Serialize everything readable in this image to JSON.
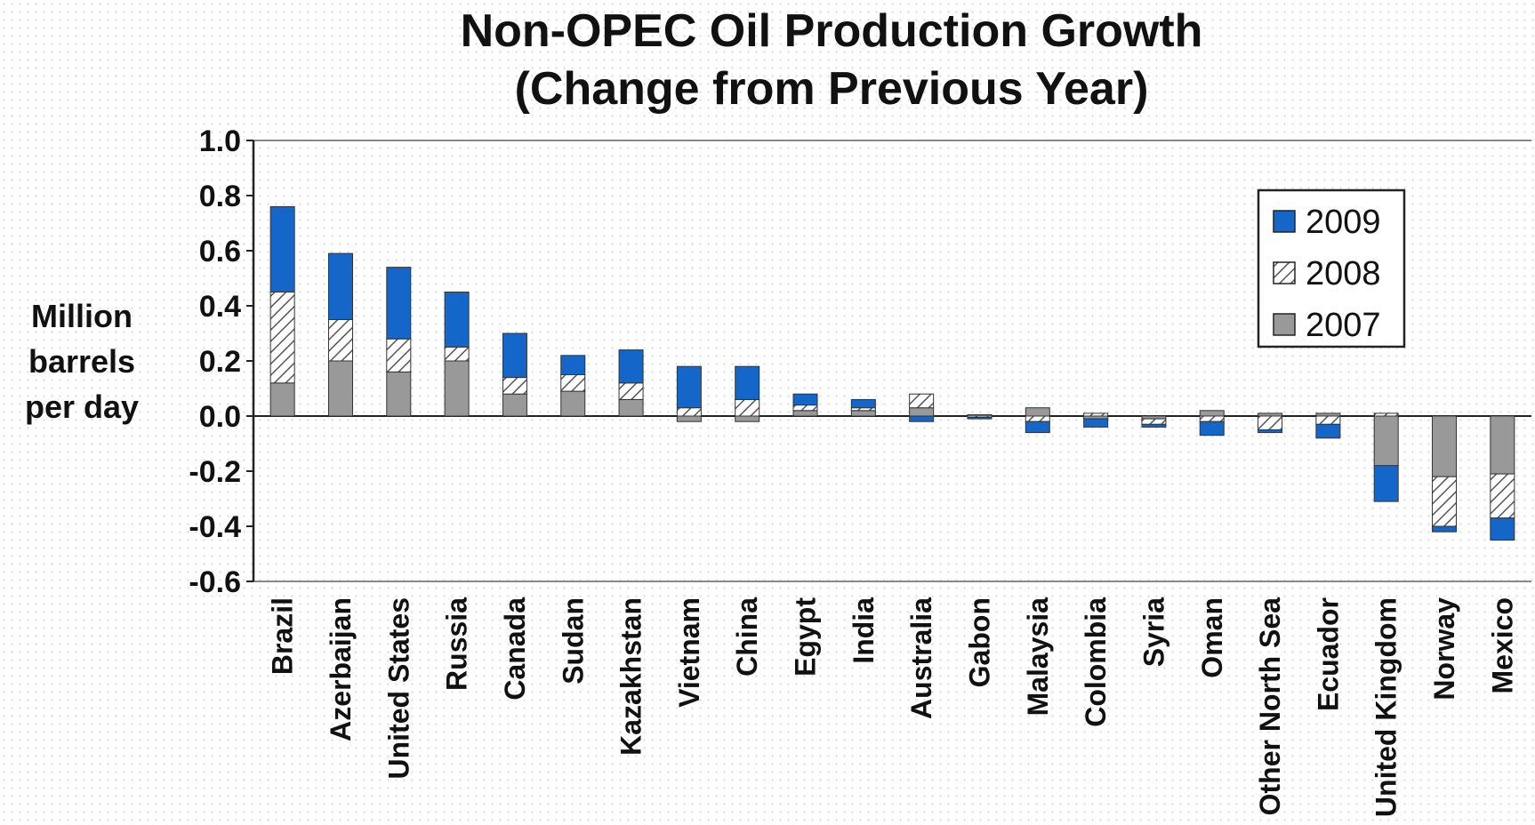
{
  "chart_data": {
    "type": "bar",
    "stacked": true,
    "title": "Non-OPEC Oil Production Growth",
    "subtitle": "(Change from Previous Year)",
    "ylabel": [
      "Million",
      "barrels",
      "per day"
    ],
    "xlabel": "",
    "ylim": [
      -0.6,
      1.0
    ],
    "yticks": [
      "1.0",
      "0.8",
      "0.6",
      "0.4",
      "0.2",
      "0.0",
      "-0.2",
      "-0.4",
      "-0.6"
    ],
    "legend_position": "top-right",
    "categories": [
      "Brazil",
      "Azerbaijan",
      "United States",
      "Russia",
      "Canada",
      "Sudan",
      "Kazakhstan",
      "Vietnam",
      "China",
      "Egypt",
      "India",
      "Australia",
      "Gabon",
      "Malaysia",
      "Colombia",
      "Syria",
      "Oman",
      "Other North Sea",
      "Ecuador",
      "United Kingdom",
      "Norway",
      "Mexico"
    ],
    "series": [
      {
        "name": "2007",
        "color": "#999999",
        "pattern": "solid",
        "values": [
          0.12,
          0.2,
          0.16,
          0.2,
          0.08,
          0.09,
          0.06,
          -0.02,
          -0.02,
          0.02,
          0.02,
          0.03,
          0.005,
          0.03,
          -0.01,
          -0.01,
          0.02,
          0.01,
          0.01,
          -0.18,
          -0.22,
          -0.21
        ]
      },
      {
        "name": "2008",
        "color": "#999999",
        "pattern": "hatch",
        "values": [
          0.33,
          0.15,
          0.12,
          0.05,
          0.06,
          0.06,
          0.06,
          0.03,
          0.06,
          0.02,
          0.01,
          0.05,
          -0.005,
          -0.02,
          0.01,
          -0.02,
          -0.02,
          -0.05,
          -0.03,
          0.01,
          -0.18,
          -0.16
        ]
      },
      {
        "name": "2009",
        "color": "#1466c8",
        "pattern": "solid",
        "values": [
          0.31,
          0.24,
          0.26,
          0.2,
          0.16,
          0.07,
          0.12,
          0.15,
          0.12,
          0.04,
          0.03,
          -0.02,
          -0.005,
          -0.04,
          -0.03,
          -0.01,
          -0.05,
          -0.01,
          -0.05,
          -0.13,
          -0.02,
          -0.08
        ]
      }
    ]
  }
}
